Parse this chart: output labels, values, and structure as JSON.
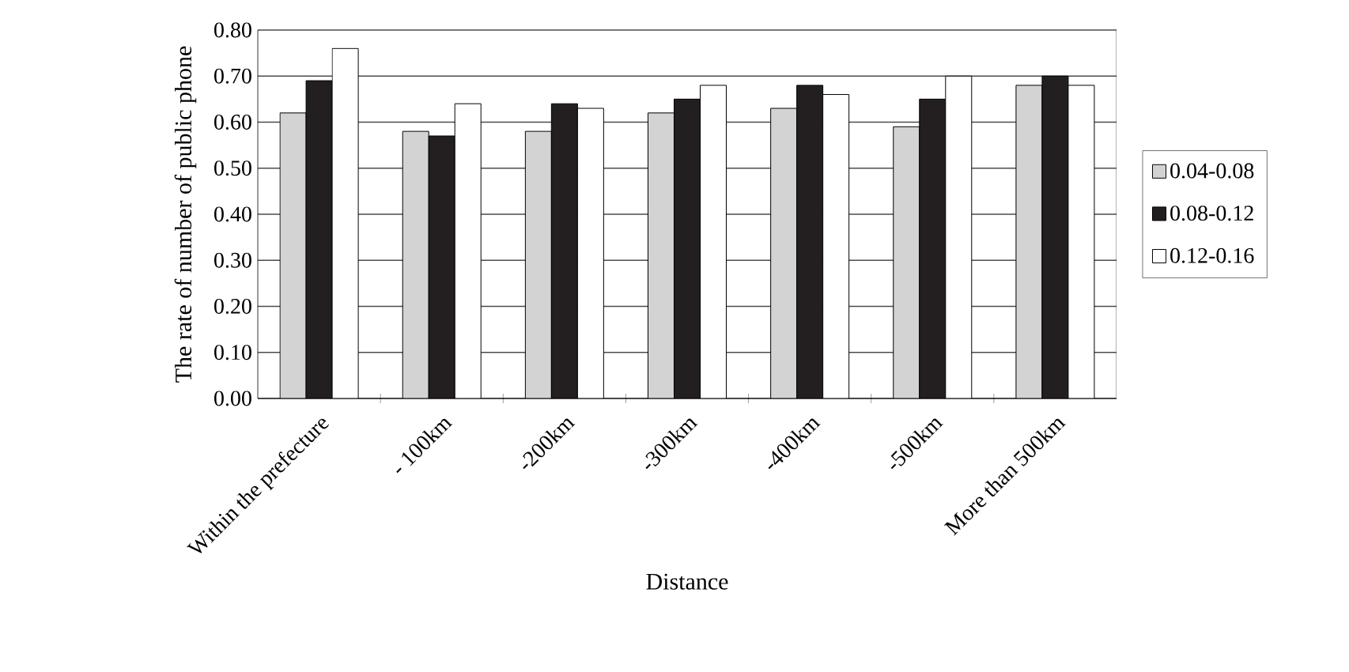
{
  "chart_data": {
    "type": "bar",
    "xlabel": "Distance",
    "ylabel": "The rate of number of public phone",
    "categories": [
      "Within the prefecture",
      "- 100km",
      "-200km",
      "-300km",
      "-400km",
      "-500km",
      "More than 500km"
    ],
    "series": [
      {
        "name": "0.04-0.08",
        "color": "#d3d3d3",
        "values": [
          0.62,
          0.58,
          0.58,
          0.62,
          0.63,
          0.59,
          0.68
        ]
      },
      {
        "name": "0.08-0.12",
        "color": "#231f20",
        "values": [
          0.69,
          0.57,
          0.64,
          0.65,
          0.68,
          0.65,
          0.7
        ]
      },
      {
        "name": "0.12-0.16",
        "color": "#ffffff",
        "values": [
          0.76,
          0.64,
          0.63,
          0.68,
          0.66,
          0.7,
          0.68
        ]
      }
    ],
    "ylim": [
      0,
      0.8
    ],
    "yticks": [
      {
        "value": 0,
        "label": "0.00"
      },
      {
        "value": 0.1,
        "label": "0.10"
      },
      {
        "value": 0.2,
        "label": "0.20"
      },
      {
        "value": 0.3,
        "label": "0.30"
      },
      {
        "value": 0.4,
        "label": "0.40"
      },
      {
        "value": 0.5,
        "label": "0.50"
      },
      {
        "value": 0.6,
        "label": "0.60"
      },
      {
        "value": 0.7,
        "label": "0.70"
      },
      {
        "value": 0.8,
        "label": "0.80"
      }
    ],
    "grid": "y",
    "legend": "right"
  }
}
